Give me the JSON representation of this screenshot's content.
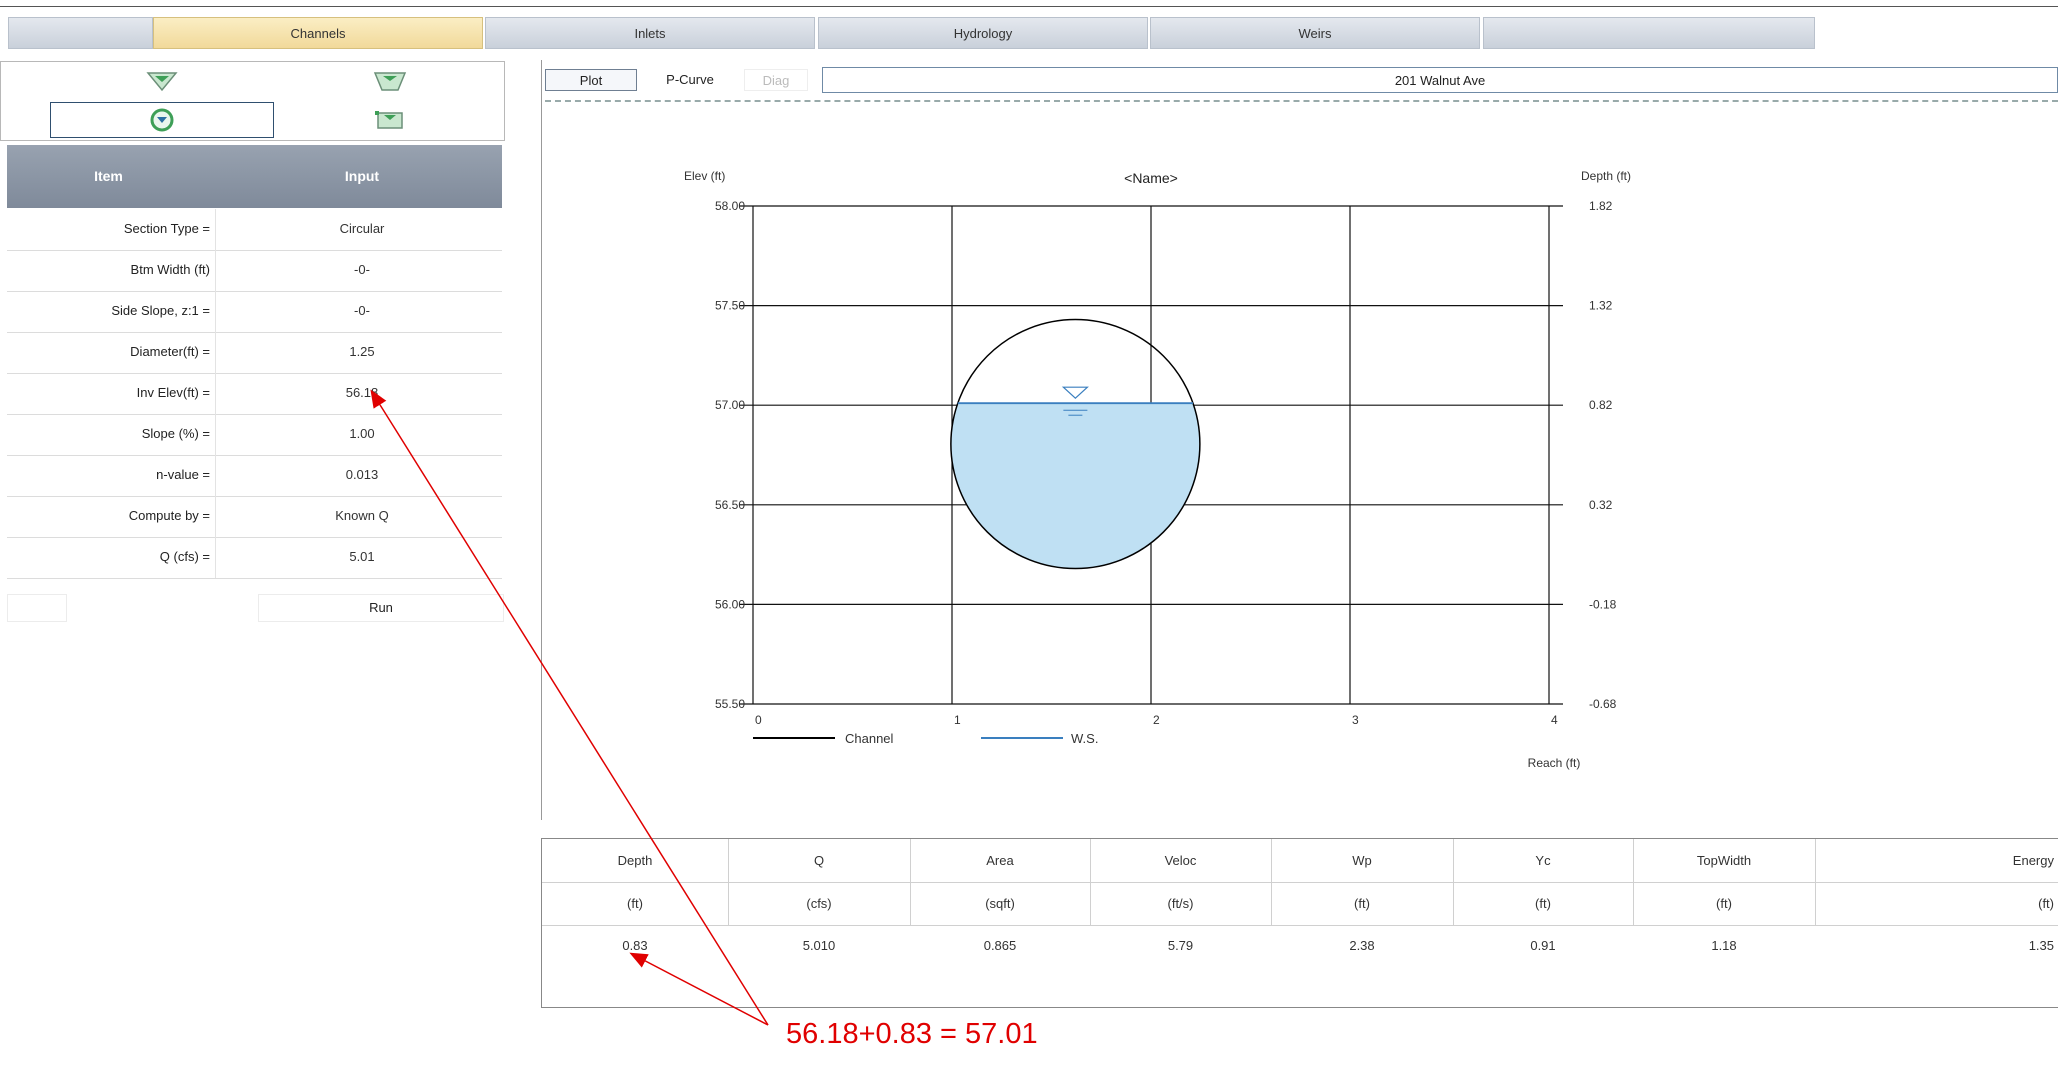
{
  "tabs": [
    {
      "label": ""
    },
    {
      "label": "Channels"
    },
    {
      "label": "Inlets"
    },
    {
      "label": "Hydrology"
    },
    {
      "label": "Weirs"
    },
    {
      "label": ""
    }
  ],
  "grid": {
    "header_item": "Item",
    "header_input": "Input",
    "rows": [
      {
        "label": "Section Type =",
        "value": "Circular"
      },
      {
        "label": "Btm Width (ft)",
        "value": "-0-"
      },
      {
        "label": "Side Slope, z:1 =",
        "value": "-0-"
      },
      {
        "label": "Diameter(ft) =",
        "value": "1.25"
      },
      {
        "label": "Inv Elev(ft) =",
        "value": "56.18"
      },
      {
        "label": "Slope (%) =",
        "value": "1.00"
      },
      {
        "label": "n-value =",
        "value": "0.013"
      },
      {
        "label": "Compute by =",
        "value": "Known Q"
      },
      {
        "label": "Q (cfs) =",
        "value": "5.01"
      }
    ],
    "run_label": "Run"
  },
  "toolbar": {
    "plot_label": "Plot",
    "pcurve_label": "P-Curve",
    "diag_label": "Diag",
    "title_value": "201 Walnut Ave"
  },
  "chart_data": {
    "type": "line",
    "title": "<Name>",
    "ylabel_left": "Elev (ft)",
    "ylabel_right": "Depth (ft)",
    "xlabel": "Reach (ft)",
    "xlim": [
      0,
      4
    ],
    "ylim": [
      55.5,
      58.0
    ],
    "x_ticks": [
      "0",
      "1",
      "2",
      "3",
      "4"
    ],
    "y_ticks_left": [
      "58.00",
      "57.50",
      "57.00",
      "56.50",
      "56.00",
      "55.50"
    ],
    "y_ticks_right": [
      "1.82",
      "1.32",
      "0.82",
      "0.32",
      "-0.18",
      "-0.68"
    ],
    "grid": true,
    "legend_position": "bottom-left",
    "series": [
      {
        "name": "Channel",
        "color": "#000000"
      },
      {
        "name": "W.S.",
        "color": "#3a7fbf"
      }
    ],
    "pipe": {
      "center_x": 1.62,
      "invert_elev": 56.18,
      "diameter": 1.25
    },
    "water_surface_elev": 57.01,
    "water_fill_color": "#bfe0f3"
  },
  "results": {
    "headers": [
      "Depth",
      "Q",
      "Area",
      "Veloc",
      "Wp",
      "Yc",
      "TopWidth",
      "Energy"
    ],
    "units": [
      "(ft)",
      "(cfs)",
      "(sqft)",
      "(ft/s)",
      "(ft)",
      "(ft)",
      "(ft)",
      "(ft)"
    ],
    "values": [
      "0.83",
      "5.010",
      "0.865",
      "5.79",
      "2.38",
      "0.91",
      "1.18",
      "1.35"
    ]
  },
  "annotation": {
    "text": "56.18+0.83 = 57.01",
    "color": "#e00000"
  }
}
